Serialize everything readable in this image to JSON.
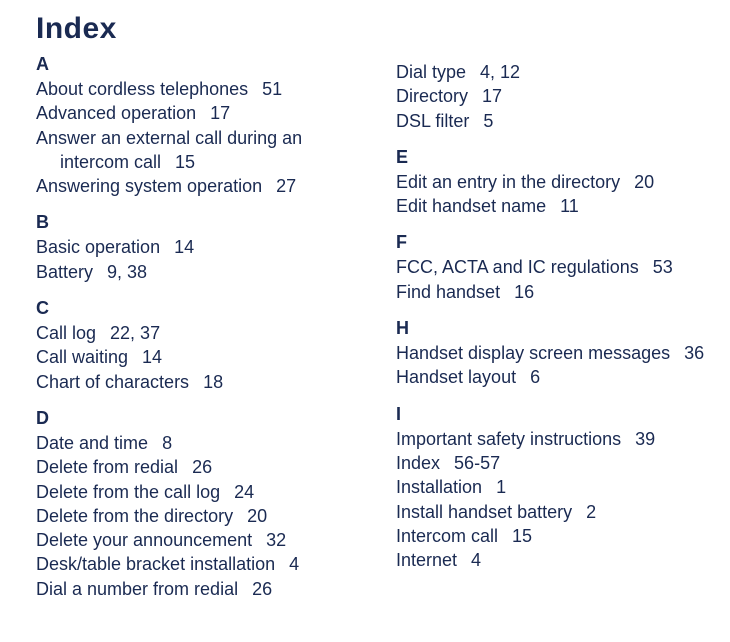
{
  "colors": {
    "text": "#1a2a52",
    "background": "#ffffff"
  },
  "title": "Index",
  "left": [
    {
      "letter": "A",
      "entries": [
        {
          "term": "About cordless telephones",
          "pages": "51"
        },
        {
          "term": "Advanced operation",
          "pages": "17"
        },
        {
          "term": "Answer an external call during an intercom call",
          "pages": "15",
          "wrap": true
        },
        {
          "term": "Answering system operation",
          "pages": "27"
        }
      ]
    },
    {
      "letter": "B",
      "entries": [
        {
          "term": "Basic operation",
          "pages": "14"
        },
        {
          "term": "Battery",
          "pages": "9, 38"
        }
      ]
    },
    {
      "letter": "C",
      "entries": [
        {
          "term": "Call log",
          "pages": "22, 37"
        },
        {
          "term": "Call waiting",
          "pages": "14"
        },
        {
          "term": "Chart of characters",
          "pages": "18"
        }
      ]
    },
    {
      "letter": "D",
      "entries": [
        {
          "term": "Date and time",
          "pages": "8"
        },
        {
          "term": "Delete from redial",
          "pages": "26"
        },
        {
          "term": "Delete from the call log",
          "pages": "24"
        },
        {
          "term": "Delete from the directory",
          "pages": "20"
        },
        {
          "term": "Delete your announcement",
          "pages": "32"
        },
        {
          "term": "Desk/table bracket installation",
          "pages": "4"
        },
        {
          "term": "Dial a number from redial",
          "pages": "26"
        }
      ]
    }
  ],
  "right_continuation": [
    {
      "term": "Dial type",
      "pages": "4, 12"
    },
    {
      "term": "Directory",
      "pages": "17"
    },
    {
      "term": "DSL filter",
      "pages": "5"
    }
  ],
  "right": [
    {
      "letter": "E",
      "entries": [
        {
          "term": "Edit an entry in the directory",
          "pages": "20"
        },
        {
          "term": "Edit handset name",
          "pages": "11"
        }
      ]
    },
    {
      "letter": "F",
      "entries": [
        {
          "term": "FCC, ACTA and IC regulations",
          "pages": "53"
        },
        {
          "term": "Find handset",
          "pages": "16"
        }
      ]
    },
    {
      "letter": "H",
      "entries": [
        {
          "term": "Handset display screen messages",
          "pages": "36"
        },
        {
          "term": "Handset layout",
          "pages": "6"
        }
      ]
    },
    {
      "letter": "I",
      "entries": [
        {
          "term": "Important safety instructions",
          "pages": "39"
        },
        {
          "term": "Index",
          "pages": "56-57"
        },
        {
          "term": "Installation",
          "pages": "1"
        },
        {
          "term": "Install handset battery",
          "pages": "2"
        },
        {
          "term": "Intercom call",
          "pages": "15"
        },
        {
          "term": "Internet",
          "pages": "4"
        }
      ]
    }
  ]
}
